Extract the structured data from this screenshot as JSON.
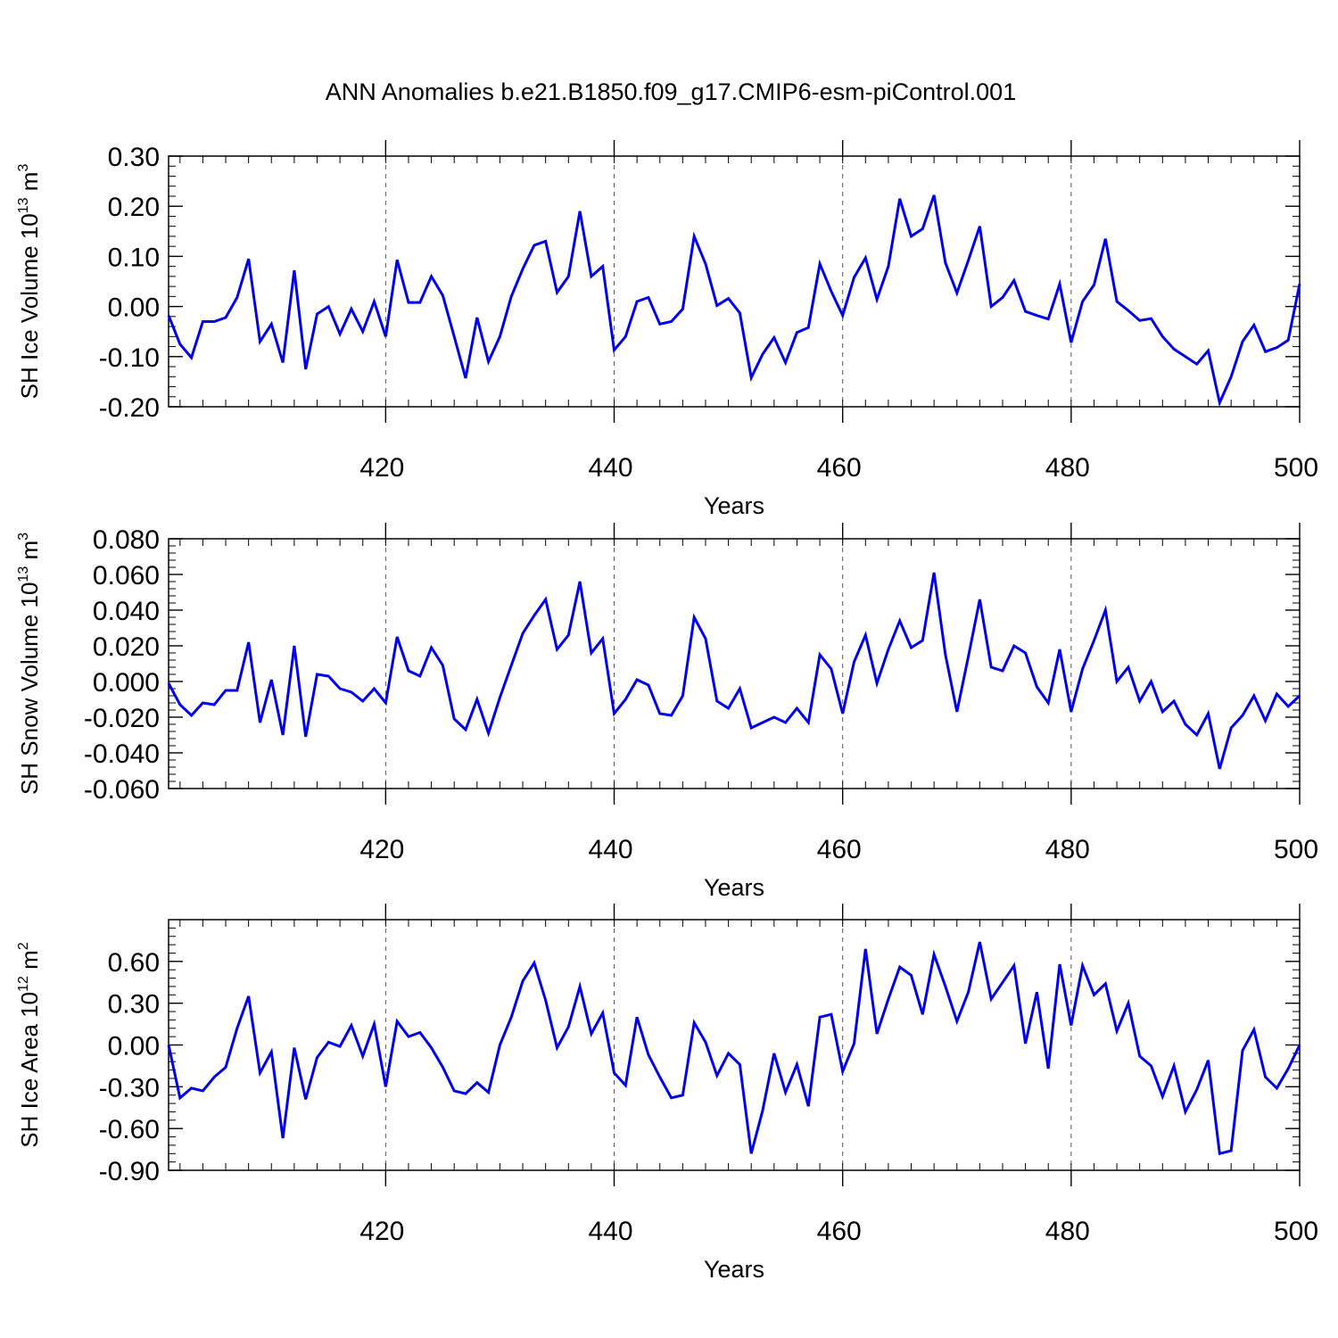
{
  "title": "ANN Anomalies b.e21.B1850.f09_g17.CMIP6-esm-piControl.001",
  "colors": {
    "line": "#0000ee",
    "axis": "#000000",
    "grid": "#555555"
  },
  "chart_data": [
    {
      "type": "line",
      "xlabel": "Years",
      "ylabel": {
        "text": "SH Ice Volume 10",
        "exp": "13",
        "unit": " m",
        "unit_exp": "3"
      },
      "xlim": [
        401,
        500
      ],
      "ylim": [
        -0.2,
        0.3
      ],
      "xticks": [
        "420",
        "440",
        "460",
        "480",
        "500"
      ],
      "yticks": [
        "-0.20",
        "-0.10",
        "0.00",
        "0.10",
        "0.20",
        "0.30"
      ],
      "grid_x": true,
      "x_start": 401,
      "values": [
        -0.018,
        -0.075,
        -0.102,
        -0.03,
        -0.03,
        -0.022,
        0.018,
        0.095,
        -0.07,
        -0.035,
        -0.112,
        0.072,
        -0.125,
        -0.015,
        0.0,
        -0.055,
        -0.005,
        -0.05,
        0.01,
        -0.06,
        0.093,
        0.008,
        0.008,
        0.06,
        0.022,
        -0.06,
        -0.143,
        -0.022,
        -0.11,
        -0.06,
        0.02,
        0.075,
        0.122,
        0.13,
        0.028,
        0.06,
        0.19,
        0.06,
        0.08,
        -0.087,
        -0.06,
        0.01,
        0.018,
        -0.035,
        -0.03,
        -0.005,
        0.14,
        0.085,
        0.002,
        0.016,
        -0.013,
        -0.142,
        -0.095,
        -0.062,
        -0.112,
        -0.052,
        -0.042,
        0.085,
        0.03,
        -0.018,
        0.058,
        0.097,
        0.014,
        0.08,
        0.215,
        0.14,
        0.155,
        0.222,
        0.087,
        0.027,
        0.092,
        0.16,
        0.0,
        0.018,
        0.052,
        -0.01,
        -0.018,
        -0.025,
        0.045,
        -0.072,
        0.01,
        0.043,
        0.135,
        0.01,
        -0.008,
        -0.028,
        -0.024,
        -0.06,
        -0.085,
        -0.1,
        -0.115,
        -0.088,
        -0.192,
        -0.14,
        -0.07,
        -0.037,
        -0.09,
        -0.082,
        -0.067,
        0.045
      ]
    },
    {
      "type": "line",
      "xlabel": "Years",
      "ylabel": {
        "text": "SH Snow Volume 10",
        "exp": "13",
        "unit": " m",
        "unit_exp": "3"
      },
      "xlim": [
        401,
        500
      ],
      "ylim": [
        -0.06,
        0.08
      ],
      "xticks": [
        "420",
        "440",
        "460",
        "480",
        "500"
      ],
      "yticks": [
        "-0.060",
        "-0.040",
        "-0.020",
        "0.000",
        "0.020",
        "0.040",
        "0.060",
        "0.080"
      ],
      "grid_x": true,
      "x_start": 401,
      "values": [
        -0.001,
        -0.013,
        -0.019,
        -0.012,
        -0.013,
        -0.005,
        -0.005,
        0.022,
        -0.023,
        0.001,
        -0.03,
        0.02,
        -0.031,
        0.004,
        0.003,
        -0.004,
        -0.006,
        -0.011,
        -0.004,
        -0.012,
        0.025,
        0.006,
        0.003,
        0.019,
        0.009,
        -0.021,
        -0.027,
        -0.01,
        -0.029,
        -0.009,
        0.009,
        0.027,
        0.037,
        0.046,
        0.018,
        0.026,
        0.056,
        0.016,
        0.024,
        -0.018,
        -0.01,
        0.001,
        -0.002,
        -0.018,
        -0.019,
        -0.008,
        0.036,
        0.024,
        -0.011,
        -0.015,
        -0.004,
        -0.026,
        -0.023,
        -0.02,
        -0.023,
        -0.015,
        -0.023,
        0.015,
        0.007,
        -0.018,
        0.011,
        0.026,
        -0.001,
        0.018,
        0.034,
        0.019,
        0.023,
        0.061,
        0.015,
        -0.017,
        0.014,
        0.046,
        0.008,
        0.006,
        0.02,
        0.016,
        -0.003,
        -0.012,
        0.018,
        -0.017,
        0.007,
        0.023,
        0.04,
        0.0,
        0.008,
        -0.011,
        0.0,
        -0.017,
        -0.011,
        -0.024,
        -0.03,
        -0.018,
        -0.049,
        -0.026,
        -0.019,
        -0.008,
        -0.022,
        -0.007,
        -0.014,
        -0.008
      ]
    },
    {
      "type": "line",
      "xlabel": "Years",
      "ylabel": {
        "text": "SH Ice Area 10",
        "exp": "12",
        "unit": " m",
        "unit_exp": "2"
      },
      "xlim": [
        401,
        500
      ],
      "ylim": [
        -0.9,
        0.9
      ],
      "xticks": [
        "420",
        "440",
        "460",
        "480",
        "500"
      ],
      "yticks": [
        "-0.90",
        "-0.60",
        "-0.30",
        "0.00",
        "0.30",
        "0.60"
      ],
      "grid_x": true,
      "x_start": 401,
      "values": [
        0.0,
        -0.38,
        -0.31,
        -0.33,
        -0.23,
        -0.16,
        0.12,
        0.35,
        -0.2,
        -0.05,
        -0.67,
        -0.02,
        -0.39,
        -0.09,
        0.02,
        -0.01,
        0.14,
        -0.08,
        0.15,
        -0.3,
        0.17,
        0.06,
        0.09,
        -0.02,
        -0.16,
        -0.33,
        -0.35,
        -0.27,
        -0.34,
        0.0,
        0.2,
        0.46,
        0.59,
        0.32,
        -0.02,
        0.13,
        0.42,
        0.08,
        0.23,
        -0.2,
        -0.29,
        0.2,
        -0.07,
        -0.23,
        -0.38,
        -0.36,
        0.16,
        0.02,
        -0.22,
        -0.06,
        -0.14,
        -0.78,
        -0.47,
        -0.06,
        -0.34,
        -0.14,
        -0.44,
        0.2,
        0.22,
        -0.19,
        0.01,
        0.69,
        0.08,
        0.33,
        0.56,
        0.5,
        0.22,
        0.65,
        0.42,
        0.17,
        0.38,
        0.74,
        0.33,
        0.45,
        0.57,
        0.01,
        0.38,
        -0.17,
        0.58,
        0.14,
        0.57,
        0.36,
        0.44,
        0.1,
        0.3,
        -0.08,
        -0.15,
        -0.37,
        -0.15,
        -0.48,
        -0.32,
        -0.11,
        -0.78,
        -0.76,
        -0.04,
        0.11,
        -0.23,
        -0.31,
        -0.17,
        0.0
      ]
    }
  ]
}
